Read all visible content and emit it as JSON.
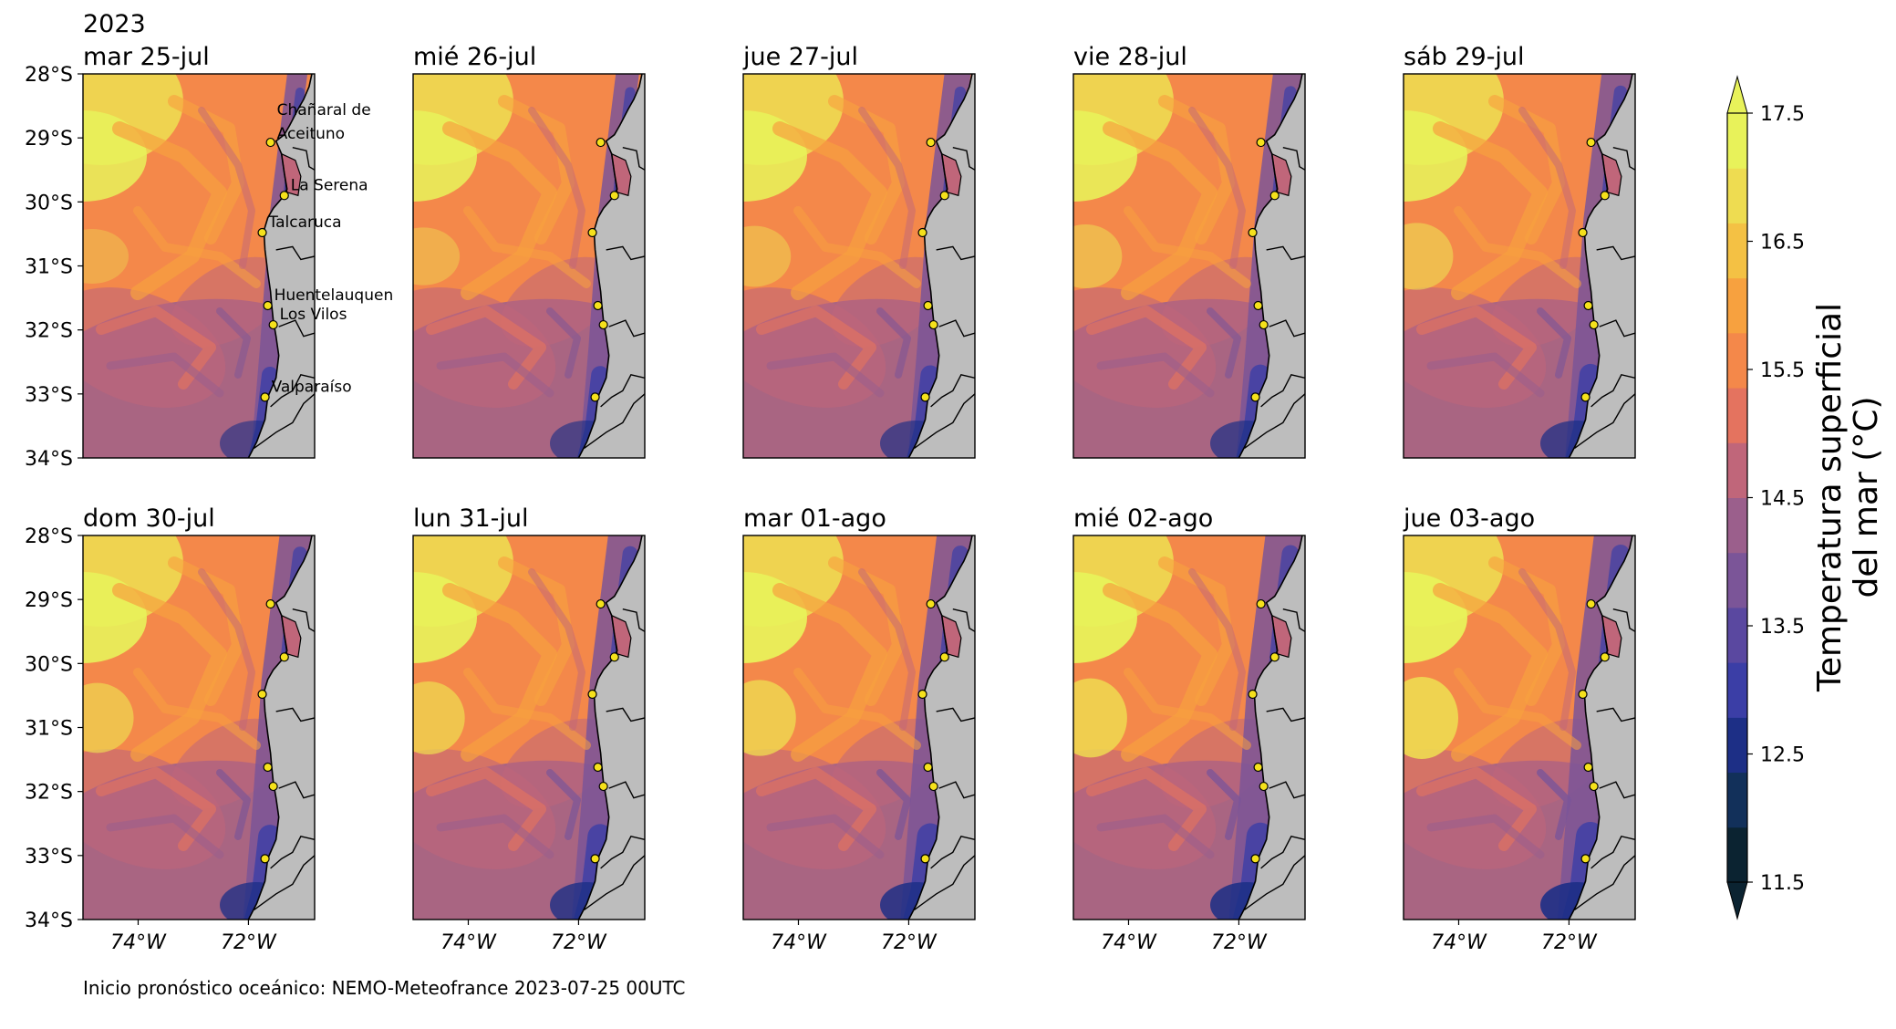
{
  "figure": {
    "year_label": "2023",
    "footer": "Inicio pronóstico oceánico: NEMO-Meteofrance 2023-07-25 00UTC"
  },
  "chart_data": {
    "type": "heatmap",
    "variable": "Temperatura superficial del mar (°C)",
    "colorbar": {
      "label_line1": "Temperatura superficial",
      "label_line2": "del mar (°C)",
      "ticks": [
        11.5,
        12.5,
        13.5,
        14.5,
        15.5,
        16.5,
        17.5
      ],
      "tick_labels": [
        "11.5",
        "12.5",
        "13.5",
        "14.5",
        "15.5",
        "16.5",
        "17.5"
      ],
      "range": [
        11.5,
        17.5
      ],
      "colors": [
        "#0b2331",
        "#12305a",
        "#1d2f86",
        "#3b3ea6",
        "#5a48a0",
        "#7b5598",
        "#9b5f8c",
        "#c0667a",
        "#e4735f",
        "#f4884a",
        "#f7a13f",
        "#f4c144",
        "#eedc51",
        "#e8f25a"
      ]
    },
    "panels": [
      {
        "date": "mar 25-jul"
      },
      {
        "date": "mié 26-jul"
      },
      {
        "date": "jue 27-jul"
      },
      {
        "date": "vie 28-jul"
      },
      {
        "date": "sáb 29-jul"
      },
      {
        "date": "dom 30-jul"
      },
      {
        "date": "lun 31-jul"
      },
      {
        "date": "mar 01-ago"
      },
      {
        "date": "mié 02-ago"
      },
      {
        "date": "jue 03-ago"
      }
    ],
    "y_axis": {
      "ticks": [
        28,
        29,
        30,
        31,
        32,
        33,
        34
      ],
      "tick_labels": [
        "28°S",
        "29°S",
        "30°S",
        "31°S",
        "32°S",
        "33°S",
        "34°S"
      ]
    },
    "x_axis": {
      "ticks": [
        -74,
        -72
      ],
      "tick_labels": [
        "74°W",
        "72°W"
      ]
    },
    "extent": {
      "lon": [
        -75,
        -70.8
      ],
      "lat": [
        -34,
        -28
      ]
    },
    "locations": [
      {
        "name": "Chañaral de",
        "name2": "Aceituno",
        "lon": -71.6,
        "lat": -29.07
      },
      {
        "name": "La Serena",
        "lon": -71.35,
        "lat": -29.9
      },
      {
        "name": "Talcaruca",
        "lon": -71.75,
        "lat": -30.48
      },
      {
        "name": "Huentelauquen",
        "lon": -71.65,
        "lat": -31.62
      },
      {
        "name": "Los Vilos",
        "lon": -71.55,
        "lat": -31.92
      },
      {
        "name": "Valparaíso",
        "lon": -71.7,
        "lat": -33.05
      }
    ]
  }
}
